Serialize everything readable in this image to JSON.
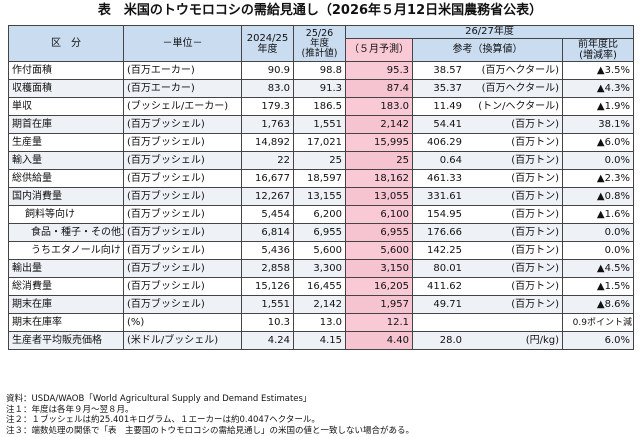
{
  "title": "表　米国のトウモロコシの需給見通し（2026年５月12日米国農務省公表）",
  "header": {
    "category": "区　分",
    "unit": "－単位－",
    "col_2024": "2024/25\n年度",
    "col_2025": "25/26\n年度\n(推計値)",
    "col_2026_group": "26/27年度",
    "col_2026_forecast": "（５月予測）",
    "col_reference": "参考（換算値）",
    "col_change": "前年度比\n(増減率)"
  },
  "rows": [
    {
      "label": "作付面積",
      "unit": "(百万エーカー)",
      "v2024": "90.9",
      "v2025": "98.8",
      "v2026": "95.3",
      "conv": "38.57",
      "conv_unit": "(百万ヘクタール)",
      "change": "▲3.5%",
      "indent": 0
    },
    {
      "label": "収穫面積",
      "unit": "(百万エーカー)",
      "v2024": "83.0",
      "v2025": "91.3",
      "v2026": "87.4",
      "conv": "35.37",
      "conv_unit": "(百万ヘクタール)",
      "change": "▲4.3%",
      "indent": 0
    },
    {
      "label": "単収",
      "unit": "(ブッシェル/エーカー)",
      "v2024": "179.3",
      "v2025": "186.5",
      "v2026": "183.0",
      "conv": "11.49",
      "conv_unit": "(トン/ヘクタール)",
      "change": "▲1.9%",
      "indent": 0
    },
    {
      "label": "期首在庫",
      "unit": "(百万ブッシェル)",
      "v2024": "1,763",
      "v2025": "1,551",
      "v2026": "2,142",
      "conv": "54.41",
      "conv_unit": "(百万トン)",
      "change": "38.1%",
      "indent": 0
    },
    {
      "label": "生産量",
      "unit": "(百万ブッシェル)",
      "v2024": "14,892",
      "v2025": "17,021",
      "v2026": "15,995",
      "conv": "406.29",
      "conv_unit": "(百万トン)",
      "change": "▲6.0%",
      "indent": 0
    },
    {
      "label": "輸入量",
      "unit": "(百万ブッシェル)",
      "v2024": "22",
      "v2025": "25",
      "v2026": "25",
      "conv": "0.64",
      "conv_unit": "(百万トン)",
      "change": "0.0%",
      "indent": 0
    },
    {
      "label": "総供給量",
      "unit": "(百万ブッシェル)",
      "v2024": "16,677",
      "v2025": "18,597",
      "v2026": "18,162",
      "conv": "461.33",
      "conv_unit": "(百万トン)",
      "change": "▲2.3%",
      "indent": 0
    },
    {
      "label": "国内消費量",
      "unit": "(百万ブッシェル)",
      "v2024": "12,267",
      "v2025": "13,155",
      "v2026": "13,055",
      "conv": "331.61",
      "conv_unit": "(百万トン)",
      "change": "▲0.8%",
      "indent": 0
    },
    {
      "label": "飼料等向け",
      "unit": "(百万ブッシェル)",
      "v2024": "5,454",
      "v2025": "6,200",
      "v2026": "6,100",
      "conv": "154.95",
      "conv_unit": "(百万トン)",
      "change": "▲1.6%",
      "indent": 1
    },
    {
      "label": "食品・種子・その他工業向け",
      "unit": "(百万ブッシェル)",
      "v2024": "6,814",
      "v2025": "6,955",
      "v2026": "6,955",
      "conv": "176.66",
      "conv_unit": "(百万トン)",
      "change": "0.0%",
      "indent": 2
    },
    {
      "label": "うちエタノール向け",
      "unit": "(百万ブッシェル)",
      "v2024": "5,436",
      "v2025": "5,600",
      "v2026": "5,600",
      "conv": "142.25",
      "conv_unit": "(百万トン)",
      "change": "0.0%",
      "indent": 2
    },
    {
      "label": "輸出量",
      "unit": "(百万ブッシェル)",
      "v2024": "2,858",
      "v2025": "3,300",
      "v2026": "3,150",
      "conv": "80.01",
      "conv_unit": "(百万トン)",
      "change": "▲4.5%",
      "indent": 0
    },
    {
      "label": "総消費量",
      "unit": "(百万ブッシェル)",
      "v2024": "15,126",
      "v2025": "16,455",
      "v2026": "16,205",
      "conv": "411.62",
      "conv_unit": "(百万トン)",
      "change": "▲1.5%",
      "indent": 0
    },
    {
      "label": "期末在庫",
      "unit": "(百万ブッシェル)",
      "v2024": "1,551",
      "v2025": "2,142",
      "v2026": "1,957",
      "conv": "49.71",
      "conv_unit": "(百万トン)",
      "change": "▲8.6%",
      "indent": 0
    },
    {
      "label": "期末在庫率",
      "unit": "(%)",
      "v2024": "10.3",
      "v2025": "13.0",
      "v2026": "12.1",
      "conv": "",
      "conv_unit": "",
      "change": "0.9ポイント減",
      "indent": 0
    },
    {
      "label": "生産者平均販売価格",
      "unit": "(米ドル/ブッシェル)",
      "v2024": "4.24",
      "v2025": "4.15",
      "v2026": "4.40",
      "conv": "28.0",
      "conv_unit": "(円/kg)",
      "change": "6.0%",
      "indent": 0
    }
  ],
  "notes": [
    "資料：USDA/WAOB「World Agricultural Supply and Demand Estimates」",
    "注１：年度は各年９月～翌８月。",
    "注２：１ブッシェルは約25.401キログラム、１エーカーは約0.4047ヘクタール。",
    "注３：端数処理の関係で「表　主要国のトウモロコシの需給見通し」の米国の値と一致しない場合がある。"
  ]
}
